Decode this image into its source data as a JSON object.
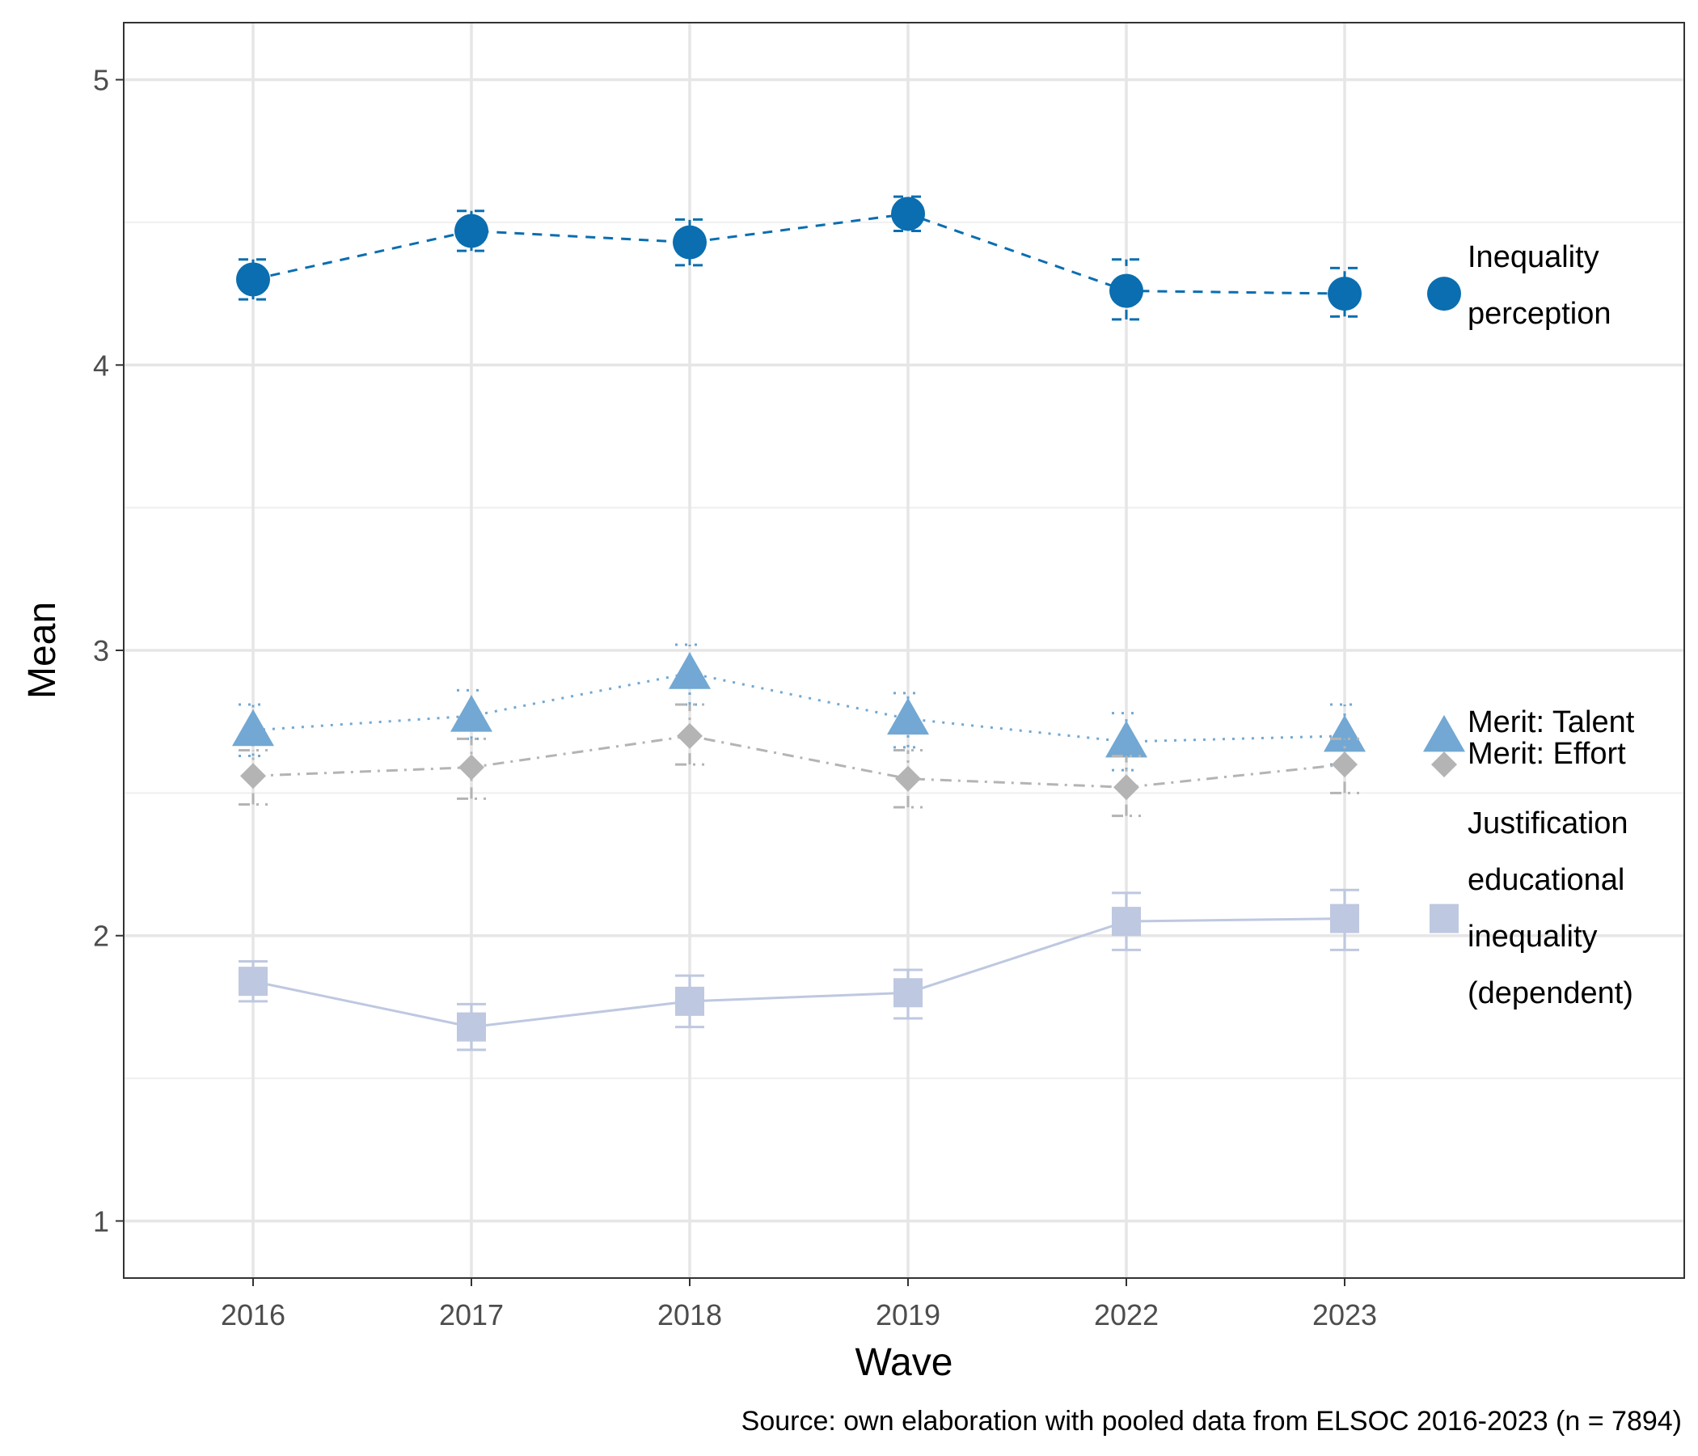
{
  "chart_data": {
    "type": "line",
    "xlabel": "Wave",
    "ylabel": "Mean",
    "caption": "Source: own elaboration with pooled data from ELSOC 2016-2023 (n = 7894)",
    "categories": [
      "2016",
      "2017",
      "2018",
      "2019",
      "2022",
      "2023"
    ],
    "ylim": [
      0.8,
      5.2
    ],
    "yticks": [
      1,
      2,
      3,
      4,
      5
    ],
    "grid": true,
    "legend": "direct labels at right end of each line",
    "series": [
      {
        "name": "Inequality perception",
        "label_lines": [
          "Inequality",
          "perception"
        ],
        "marker": "circle",
        "line_style": "dashed",
        "color": "#0a6eb0",
        "values": [
          4.3,
          4.47,
          4.43,
          4.53,
          4.26,
          4.25
        ],
        "ci_low": [
          4.23,
          4.4,
          4.35,
          4.47,
          4.16,
          4.17
        ],
        "ci_high": [
          4.37,
          4.54,
          4.51,
          4.59,
          4.37,
          4.34
        ]
      },
      {
        "name": "Merit: Talent",
        "label_lines": [
          "Merit: Talent"
        ],
        "marker": "triangle",
        "line_style": "dotted",
        "color": "#72a8d3",
        "values": [
          2.72,
          2.77,
          2.92,
          2.76,
          2.68,
          2.7
        ],
        "ci_low": [
          2.63,
          2.69,
          2.81,
          2.66,
          2.58,
          2.6
        ],
        "ci_high": [
          2.81,
          2.86,
          3.02,
          2.85,
          2.78,
          2.81
        ]
      },
      {
        "name": "Merit: Effort",
        "label_lines": [
          "Merit: Effort"
        ],
        "marker": "diamond",
        "line_style": "dashdot",
        "color": "#b4b4b4",
        "values": [
          2.56,
          2.59,
          2.7,
          2.55,
          2.52,
          2.6
        ],
        "ci_low": [
          2.46,
          2.48,
          2.6,
          2.45,
          2.42,
          2.5
        ],
        "ci_high": [
          2.65,
          2.69,
          2.81,
          2.65,
          2.63,
          2.69
        ]
      },
      {
        "name": "Justification educational inequality (dependent)",
        "label_lines": [
          "Justification",
          "educational",
          "inequality",
          "(dependent)"
        ],
        "marker": "square",
        "line_style": "solid",
        "color": "#bec8e0",
        "values": [
          1.84,
          1.68,
          1.77,
          1.8,
          2.05,
          2.06
        ],
        "ci_low": [
          1.77,
          1.6,
          1.68,
          1.71,
          1.95,
          1.95
        ],
        "ci_high": [
          1.91,
          1.76,
          1.86,
          1.88,
          2.15,
          2.16
        ]
      }
    ]
  }
}
